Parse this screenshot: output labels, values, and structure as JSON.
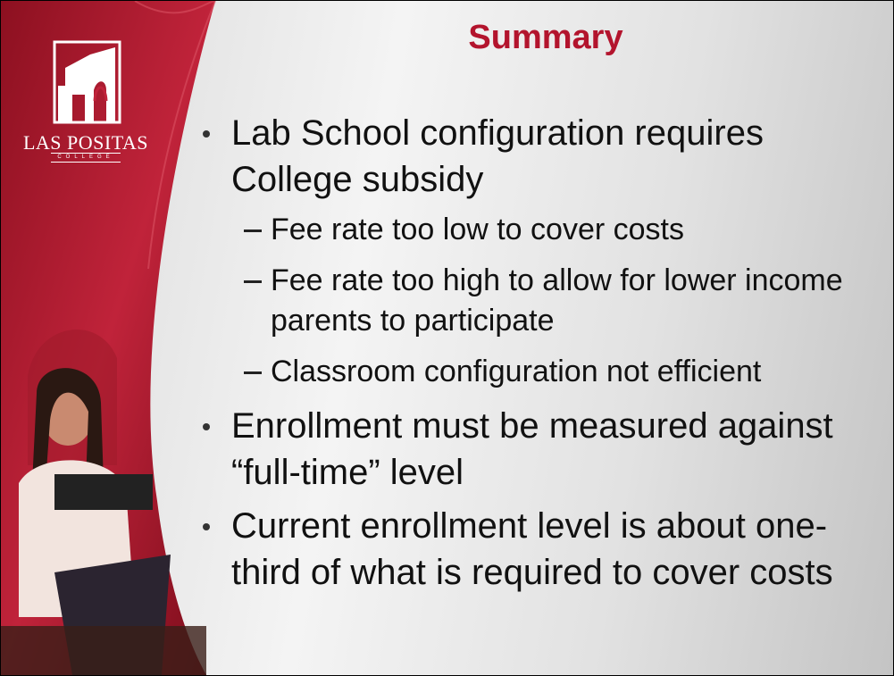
{
  "logo": {
    "name": "LAS POSITAS",
    "subtitle": "COLLEGE"
  },
  "title": "Summary",
  "bullets": [
    {
      "text": "Lab School configuration requires College subsidy",
      "subitems": [
        "Fee rate too low to cover costs",
        "Fee rate too high to allow for lower income parents to participate",
        "Classroom configuration not efficient"
      ]
    },
    {
      "text": "Enrollment must be measured against “full-time” level",
      "subitems": []
    },
    {
      "text": "Current enrollment level is about one-third of what is required to cover costs",
      "subitems": []
    }
  ]
}
